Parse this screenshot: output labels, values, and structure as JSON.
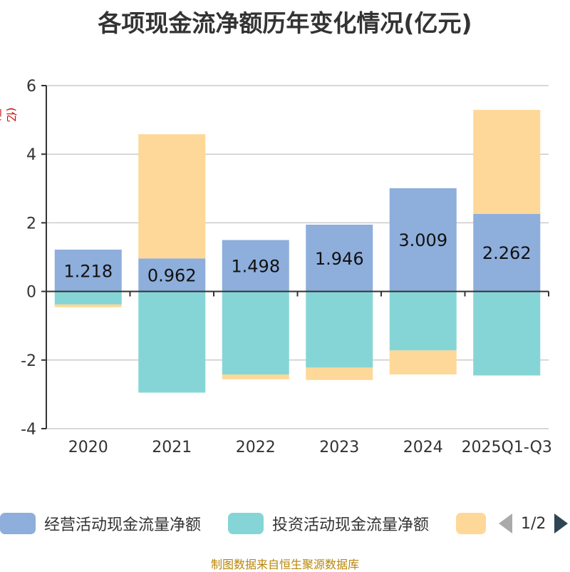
{
  "chart_data": {
    "type": "bar",
    "stacked": true,
    "title": "各项现金流净额历年变化情况(亿元)",
    "ylabel": "(亿元)",
    "xlabel": "",
    "categories": [
      "2020",
      "2021",
      "2022",
      "2023",
      "2024",
      "2025Q1-Q3"
    ],
    "ylim": [
      -4,
      6
    ],
    "yticks": [
      -4,
      -2,
      0,
      2,
      4,
      6
    ],
    "grid": true,
    "series": [
      {
        "name": "经营活动现金流量净额",
        "color": "#8eaedb",
        "values": [
          1.218,
          0.962,
          1.498,
          1.946,
          3.009,
          2.262
        ],
        "labels": [
          "1.218",
          "0.962",
          "1.498",
          "1.946",
          "3.009",
          "2.262"
        ]
      },
      {
        "name": "投资活动现金流量净额",
        "color": "#86d5d6",
        "values": [
          -0.38,
          -2.95,
          -2.42,
          -2.22,
          -1.72,
          -2.45
        ]
      },
      {
        "name": "",
        "color": "#fed898",
        "values": [
          -0.08,
          3.62,
          -0.14,
          -0.36,
          -0.7,
          3.03
        ]
      }
    ],
    "legend": {
      "position": "bottom",
      "pager": "1/2"
    }
  },
  "source": "制图数据来自恒生聚源数据库"
}
